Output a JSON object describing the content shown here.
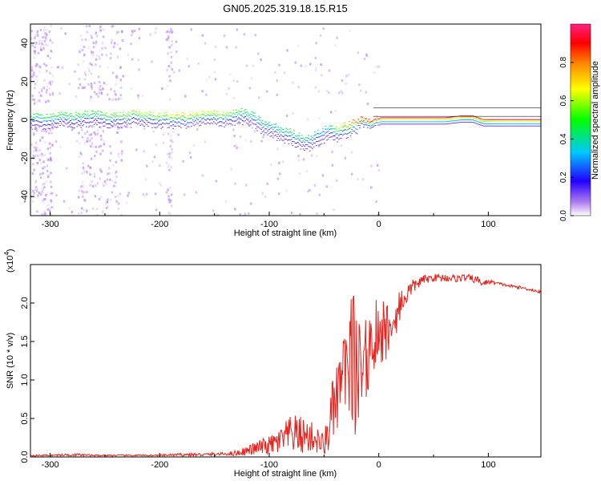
{
  "figure_title": "GN05.2025.319.18.15.R15",
  "chart_data": [
    {
      "type": "heatmap",
      "xlabel": "Height of straight line (km)",
      "ylabel": "Frequency (Hz)",
      "xlim": [
        -318,
        148
      ],
      "ylim": [
        -50,
        50
      ],
      "x_ticks": [
        -300,
        -200,
        -100,
        0,
        100
      ],
      "x_tick_labels": [
        "-300",
        "-200",
        "-100",
        "0",
        "100"
      ],
      "y_ticks": [
        -40,
        -20,
        0,
        20,
        40
      ],
      "y_tick_labels": [
        "-40",
        "-20",
        "0",
        "20",
        "40"
      ],
      "colorbar": {
        "label": "Normalized spectral amplitude",
        "range": [
          0,
          1
        ],
        "ticks": [
          0,
          0.2,
          0.4,
          0.6,
          0.8
        ],
        "tick_labels": [
          "0.0",
          "0.2",
          "0.4",
          "0.6",
          "0.8"
        ],
        "colormap": [
          "#ffffff",
          "#8000ff",
          "#0000ff",
          "#00ffff",
          "#00ff00",
          "#ffff00",
          "#ff0000",
          "#ff0080"
        ]
      },
      "ridge": {
        "x": [
          -318,
          -300,
          -280,
          -260,
          -240,
          -220,
          -200,
          -180,
          -160,
          -140,
          -125,
          -115,
          -105,
          -95,
          -85,
          -75,
          -65,
          -55,
          -45,
          -38,
          -30,
          -20,
          -10,
          0,
          20,
          40,
          60,
          75,
          85,
          95,
          110,
          130,
          148
        ],
        "y": [
          3,
          4,
          4,
          5,
          4,
          5,
          4,
          4,
          5,
          5,
          6,
          4,
          0,
          -2,
          -4,
          -6,
          -8,
          -5,
          -2,
          -3,
          -1,
          1,
          1,
          2,
          2,
          2,
          2,
          3,
          3,
          1,
          1,
          1,
          1
        ],
        "amplitude": [
          0.45,
          0.5,
          0.5,
          0.5,
          0.55,
          0.6,
          0.6,
          0.7,
          0.65,
          0.6,
          0.5,
          0.45,
          0.4,
          0.4,
          0.45,
          0.45,
          0.4,
          0.35,
          0.4,
          0.6,
          0.75,
          0.85,
          0.9,
          0.95,
          0.95,
          0.95,
          0.95,
          0.9,
          0.9,
          0.85,
          0.95,
          0.95,
          0.95
        ]
      },
      "colors": {
        "noise": "#b07cf0"
      }
    },
    {
      "type": "line",
      "xlabel": "Height of straight line (km)",
      "ylabel": "SNR (10 * v/v)",
      "y_multiplier": "(x10",
      "y_multiplier_exp": "4",
      "y_multiplier_close": ")",
      "xlim": [
        -318,
        148
      ],
      "ylim": [
        0,
        2.5
      ],
      "x_ticks": [
        -300,
        -200,
        -100,
        0,
        100
      ],
      "x_tick_labels": [
        "-300",
        "-200",
        "-100",
        "0",
        "100"
      ],
      "y_ticks": [
        0,
        0.5,
        1.0,
        1.5,
        2.0
      ],
      "y_tick_labels": [
        "0.0",
        "0.5",
        "1.0",
        "1.5",
        "2.0"
      ],
      "color": "#e8211b",
      "series": [
        {
          "x": [
            -318,
            -300,
            -280,
            -260,
            -240,
            -220,
            -200,
            -180,
            -160,
            -140,
            -130,
            -120,
            -110,
            -100,
            -90,
            -80,
            -70,
            -60,
            -50,
            -45,
            -40,
            -35,
            -30,
            -27,
            -24,
            -20,
            -15,
            -10,
            -5,
            0,
            5,
            10,
            15,
            20,
            25,
            30,
            40,
            50,
            60,
            70,
            80,
            90,
            95,
            100,
            110,
            120,
            130,
            140,
            148
          ],
          "y": [
            0.02,
            0.02,
            0.03,
            0.02,
            0.02,
            0.02,
            0.02,
            0.03,
            0.03,
            0.04,
            0.05,
            0.08,
            0.12,
            0.15,
            0.2,
            0.3,
            0.28,
            0.25,
            0.15,
            0.4,
            0.7,
            0.9,
            1.1,
            1.2,
            1.3,
            1.3,
            1.3,
            1.4,
            1.55,
            1.7,
            1.6,
            1.75,
            1.9,
            2.0,
            2.1,
            2.2,
            2.3,
            2.33,
            2.33,
            2.32,
            2.33,
            2.3,
            2.25,
            2.28,
            2.25,
            2.22,
            2.2,
            2.17,
            2.14
          ],
          "noise": [
            0.01,
            0.01,
            0.02,
            0.01,
            0.01,
            0.01,
            0.01,
            0.02,
            0.02,
            0.02,
            0.04,
            0.06,
            0.1,
            0.12,
            0.18,
            0.25,
            0.25,
            0.2,
            0.15,
            0.35,
            0.5,
            0.55,
            0.6,
            0.9,
            0.9,
            0.8,
            0.7,
            0.6,
            0.5,
            0.5,
            0.4,
            0.35,
            0.3,
            0.2,
            0.15,
            0.1,
            0.06,
            0.05,
            0.05,
            0.05,
            0.05,
            0.05,
            0.04,
            0.03,
            0.02,
            0.02,
            0.02,
            0.02,
            0.02
          ]
        }
      ]
    }
  ]
}
